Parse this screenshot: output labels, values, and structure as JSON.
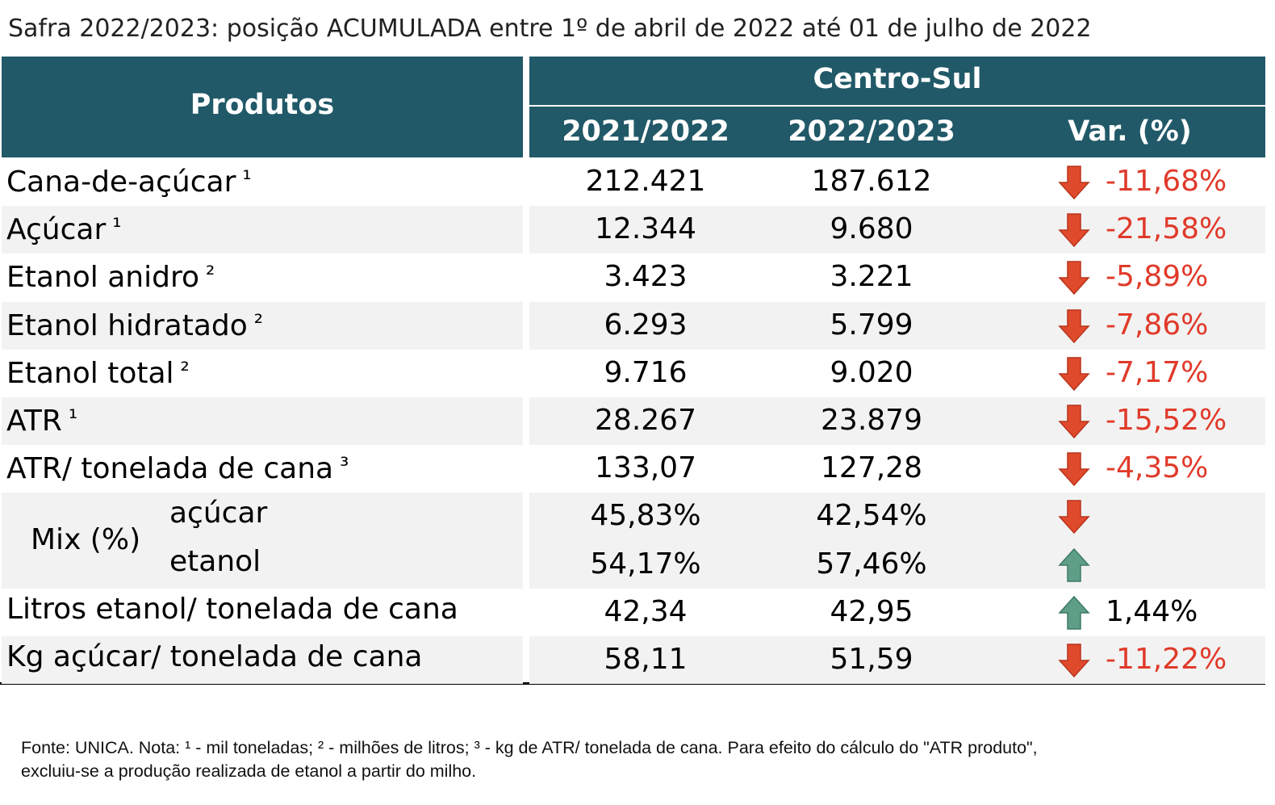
{
  "title": "Safra 2022/2023: posição ACUMULADA entre 1º de abril de 2022 até 01 de julho de 2022",
  "header": {
    "products": "Produtos",
    "region": "Centro-Sul",
    "columns": [
      "2021/2022",
      "2022/2023",
      "Var. (%)"
    ]
  },
  "rows": [
    {
      "label": "Cana-de-açúcar",
      "note": "¹",
      "values": [
        "212.421",
        "187.612"
      ],
      "variation": "-11,68%",
      "arrow": "down"
    },
    {
      "label": "Açúcar",
      "note": "¹",
      "values": [
        "12.344",
        "9.680"
      ],
      "variation": "-21,58%",
      "arrow": "down"
    },
    {
      "label": "Etanol anidro",
      "note": "²",
      "values": [
        "3.423",
        "3.221"
      ],
      "variation": "-5,89%",
      "arrow": "down"
    },
    {
      "label": "Etanol hidratado",
      "note": "²",
      "values": [
        "6.293",
        "5.799"
      ],
      "variation": "-7,86%",
      "arrow": "down"
    },
    {
      "label": "Etanol total",
      "note": "²",
      "values": [
        "9.716",
        "9.020"
      ],
      "variation": "-7,17%",
      "arrow": "down"
    },
    {
      "label": "ATR",
      "note": "¹",
      "values": [
        "28.267",
        "23.879"
      ],
      "variation": "-15,52%",
      "arrow": "down"
    },
    {
      "label": "ATR/ tonelada de cana",
      "note": "³",
      "values": [
        "133,07",
        "127,28"
      ],
      "variation": "-4,35%",
      "arrow": "down"
    }
  ],
  "mix": {
    "label": "Mix (%)",
    "rows": [
      {
        "label": "açúcar",
        "values": [
          "45,83%",
          "42,54%"
        ],
        "arrow": "down"
      },
      {
        "label": "etanol",
        "values": [
          "54,17%",
          "57,46%"
        ],
        "arrow": "up"
      }
    ]
  },
  "rows_after": [
    {
      "label": "Litros etanol/ tonelada de cana",
      "values": [
        "42,34",
        "42,95"
      ],
      "variation": "1,44%",
      "arrow": "up"
    },
    {
      "label": "Kg açúcar/ tonelada de cana",
      "values": [
        "58,11",
        "51,59"
      ],
      "variation": "-11,22%",
      "arrow": "down"
    }
  ],
  "footnote": [
    "Fonte: UNICA. Nota: ¹ - mil toneladas; ² - milhões de litros; ³ - kg de ATR/ tonelada de cana. Para efeito do cálculo do \"ATR produto\",",
    "excluiu-se a produção realizada de etanol a partir do milho."
  ]
}
